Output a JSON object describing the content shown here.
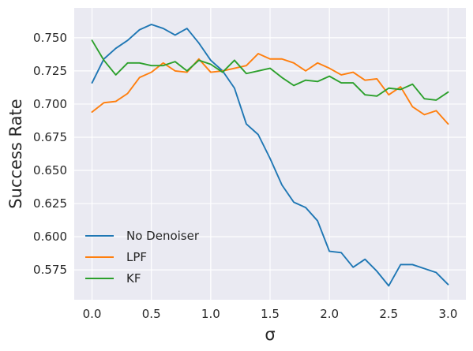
{
  "chart_data": {
    "type": "line",
    "xlabel": "σ",
    "ylabel": "Success Rate",
    "xlim": [
      -0.15,
      3.15
    ],
    "ylim": [
      0.5525,
      0.7725
    ],
    "xticks": [
      0.0,
      0.5,
      1.0,
      1.5,
      2.0,
      2.5,
      3.0
    ],
    "xtick_labels": [
      "0.0",
      "0.5",
      "1.0",
      "1.5",
      "2.0",
      "2.5",
      "3.0"
    ],
    "yticks": [
      0.575,
      0.6,
      0.625,
      0.65,
      0.675,
      0.7,
      0.725,
      0.75
    ],
    "ytick_labels": [
      "0.575",
      "0.600",
      "0.625",
      "0.650",
      "0.675",
      "0.700",
      "0.725",
      "0.750"
    ],
    "grid": true,
    "legend_position": "lower-left",
    "x": [
      0.0,
      0.1,
      0.2,
      0.3,
      0.4,
      0.5,
      0.6,
      0.7,
      0.8,
      0.9,
      1.0,
      1.1,
      1.2,
      1.3,
      1.4,
      1.5,
      1.6,
      1.7,
      1.8,
      1.9,
      2.0,
      2.1,
      2.2,
      2.3,
      2.4,
      2.5,
      2.6,
      2.7,
      2.8,
      2.9,
      3.0
    ],
    "series": [
      {
        "name": "No Denoiser",
        "color": "#1f77b4",
        "values": [
          0.716,
          0.734,
          0.742,
          0.748,
          0.756,
          0.76,
          0.757,
          0.752,
          0.757,
          0.746,
          0.733,
          0.725,
          0.712,
          0.685,
          0.677,
          0.659,
          0.639,
          0.626,
          0.622,
          0.612,
          0.589,
          0.588,
          0.577,
          0.583,
          0.574,
          0.563,
          0.579,
          0.579,
          0.576,
          0.573,
          0.564
        ]
      },
      {
        "name": "LPF",
        "color": "#ff7f0e",
        "values": [
          0.694,
          0.701,
          0.702,
          0.708,
          0.72,
          0.724,
          0.731,
          0.725,
          0.724,
          0.734,
          0.724,
          0.725,
          0.727,
          0.729,
          0.738,
          0.734,
          0.734,
          0.731,
          0.725,
          0.731,
          0.727,
          0.722,
          0.724,
          0.718,
          0.719,
          0.707,
          0.713,
          0.698,
          0.692,
          0.695,
          0.685
        ]
      },
      {
        "name": "KF",
        "color": "#2ca02c",
        "values": [
          0.748,
          0.733,
          0.722,
          0.731,
          0.731,
          0.729,
          0.729,
          0.732,
          0.725,
          0.733,
          0.73,
          0.724,
          0.733,
          0.723,
          0.725,
          0.727,
          0.72,
          0.714,
          0.718,
          0.717,
          0.721,
          0.716,
          0.716,
          0.707,
          0.706,
          0.712,
          0.711,
          0.715,
          0.704,
          0.703,
          0.709
        ]
      }
    ]
  }
}
